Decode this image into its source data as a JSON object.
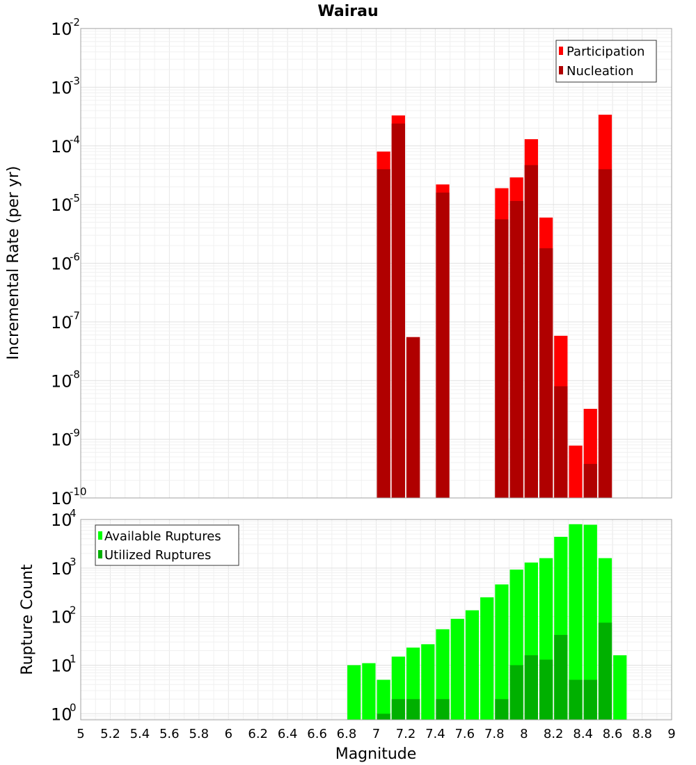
{
  "chart_data": [
    {
      "type": "bar",
      "title": "Wairau",
      "ylabel": "Incremental Rate (per yr)",
      "y_scale": "log",
      "ylim": [
        1e-10,
        0.01
      ],
      "xlim": [
        5,
        9
      ],
      "y_tick_labels": [
        {
          "base": "10",
          "exp": "-2"
        },
        {
          "base": "10",
          "exp": "-3"
        },
        {
          "base": "10",
          "exp": "-4"
        },
        {
          "base": "10",
          "exp": "-5"
        },
        {
          "base": "10",
          "exp": "-6"
        },
        {
          "base": "10",
          "exp": "-7"
        },
        {
          "base": "10",
          "exp": "-8"
        },
        {
          "base": "10",
          "exp": "-9"
        },
        {
          "base": "10",
          "exp": "-10"
        }
      ],
      "legend_position": "top-right",
      "grid": true,
      "x": [
        7.05,
        7.15,
        7.25,
        7.45,
        7.85,
        7.95,
        8.05,
        8.15,
        8.25,
        8.35,
        8.45,
        8.55
      ],
      "series": [
        {
          "name": "Participation",
          "color": "#ff0000",
          "values": [
            8e-05,
            0.00033,
            5.5e-08,
            2.2e-05,
            1.9e-05,
            2.9e-05,
            0.00013,
            6e-06,
            5.8e-08,
            7.8e-10,
            3.3e-09,
            0.00034
          ]
        },
        {
          "name": "Nucleation",
          "color": "#b00000",
          "values": [
            4e-05,
            0.00024,
            5.5e-08,
            1.6e-05,
            5.6e-06,
            1.15e-05,
            4.7e-05,
            1.8e-06,
            8e-09,
            null,
            3.8e-10,
            4e-05
          ]
        }
      ]
    },
    {
      "type": "bar",
      "xlabel": "Magnitude",
      "ylabel": "Rupture Count",
      "y_scale": "log",
      "ylim": [
        0.75,
        10000
      ],
      "xlim": [
        5,
        9
      ],
      "x_tick_labels": [
        "5",
        "5.2",
        "5.4",
        "5.6",
        "5.8",
        "6",
        "6.2",
        "6.4",
        "6.6",
        "6.8",
        "7",
        "7.2",
        "7.4",
        "7.6",
        "7.8",
        "8",
        "8.2",
        "8.4",
        "8.6",
        "8.8",
        "9"
      ],
      "y_tick_labels": [
        {
          "base": "10",
          "exp": "4"
        },
        {
          "base": "10",
          "exp": "3"
        },
        {
          "base": "10",
          "exp": "2"
        },
        {
          "base": "10",
          "exp": "1"
        },
        {
          "base": "10",
          "exp": "0"
        }
      ],
      "legend_position": "top-left",
      "grid": true,
      "x": [
        6.85,
        6.95,
        7.05,
        7.15,
        7.25,
        7.35,
        7.45,
        7.55,
        7.65,
        7.75,
        7.85,
        7.95,
        8.05,
        8.15,
        8.25,
        8.35,
        8.45,
        8.55,
        8.65
      ],
      "series": [
        {
          "name": "Available Ruptures",
          "color": "#00ff00",
          "values": [
            10,
            11,
            5,
            15,
            23,
            27,
            55,
            90,
            135,
            250,
            460,
            930,
            1300,
            1600,
            4400,
            8000,
            7800,
            1600,
            16
          ]
        },
        {
          "name": "Utilized Ruptures",
          "color": "#00b000",
          "values": [
            null,
            null,
            1,
            2,
            2,
            null,
            2,
            null,
            null,
            null,
            2,
            10,
            16,
            13,
            42,
            5,
            5,
            75,
            null
          ]
        }
      ]
    }
  ]
}
